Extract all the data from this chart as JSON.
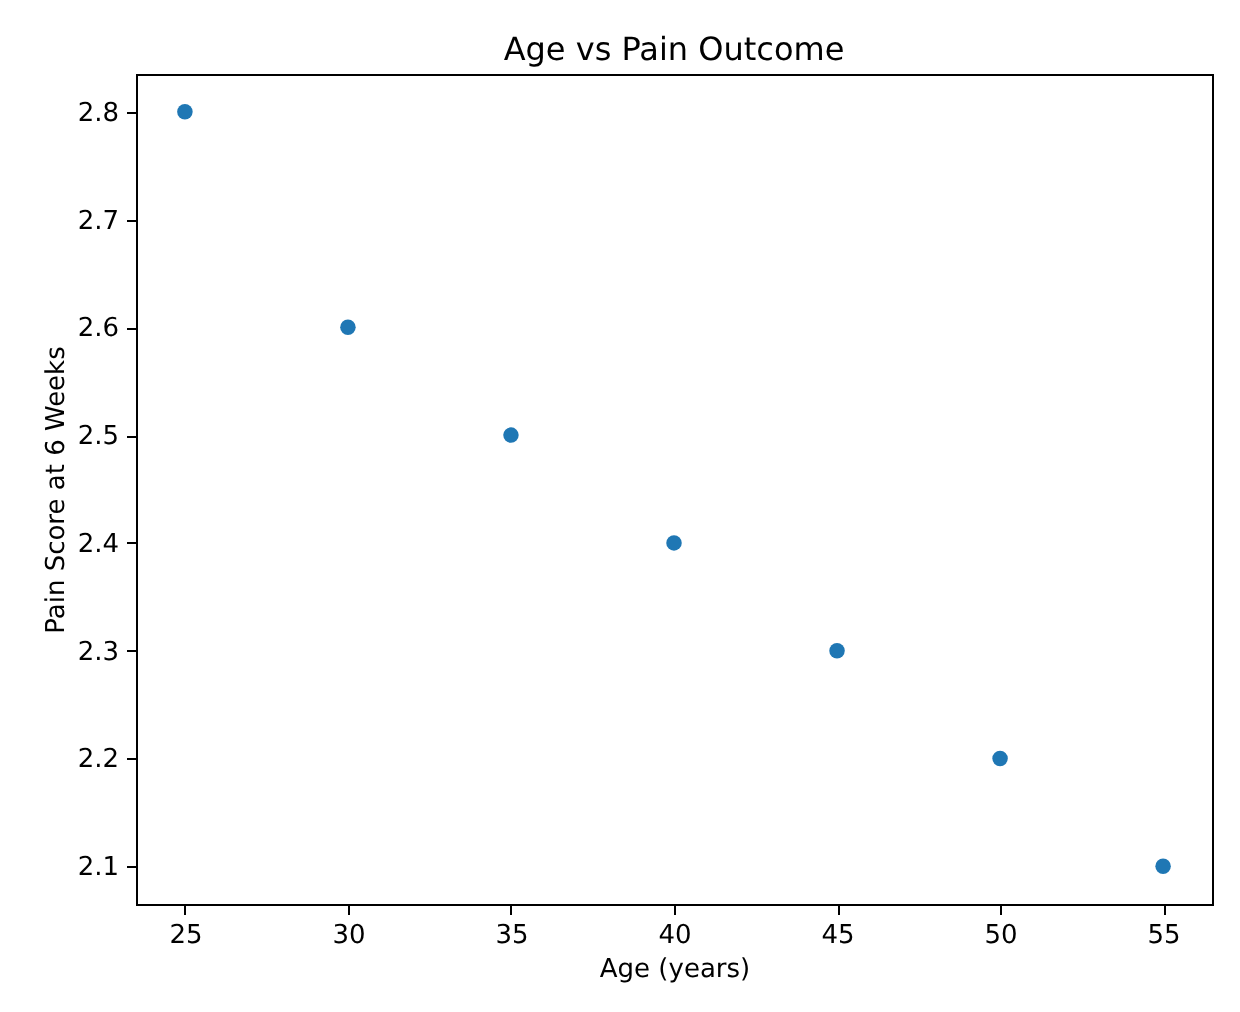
{
  "chart_data": {
    "type": "scatter",
    "title": "Age vs Pain Outcome",
    "xlabel": "Age (years)",
    "ylabel": "Pain Score at 6 Weeks",
    "x": [
      25,
      30,
      35,
      40,
      45,
      50,
      55
    ],
    "series": [
      {
        "color": "#1f77b4",
        "values": [
          2.8,
          2.6,
          2.5,
          2.4,
          2.3,
          2.2,
          2.1
        ]
      }
    ],
    "xlim": [
      23.5,
      56.5
    ],
    "xticks": [
      25,
      30,
      35,
      40,
      45,
      50,
      55
    ],
    "ylim": [
      2.065,
      2.835
    ],
    "yticks": [
      2.1,
      2.2,
      2.3,
      2.4,
      2.5,
      2.6,
      2.7,
      2.8
    ],
    "marker": "circle",
    "grid": false
  }
}
